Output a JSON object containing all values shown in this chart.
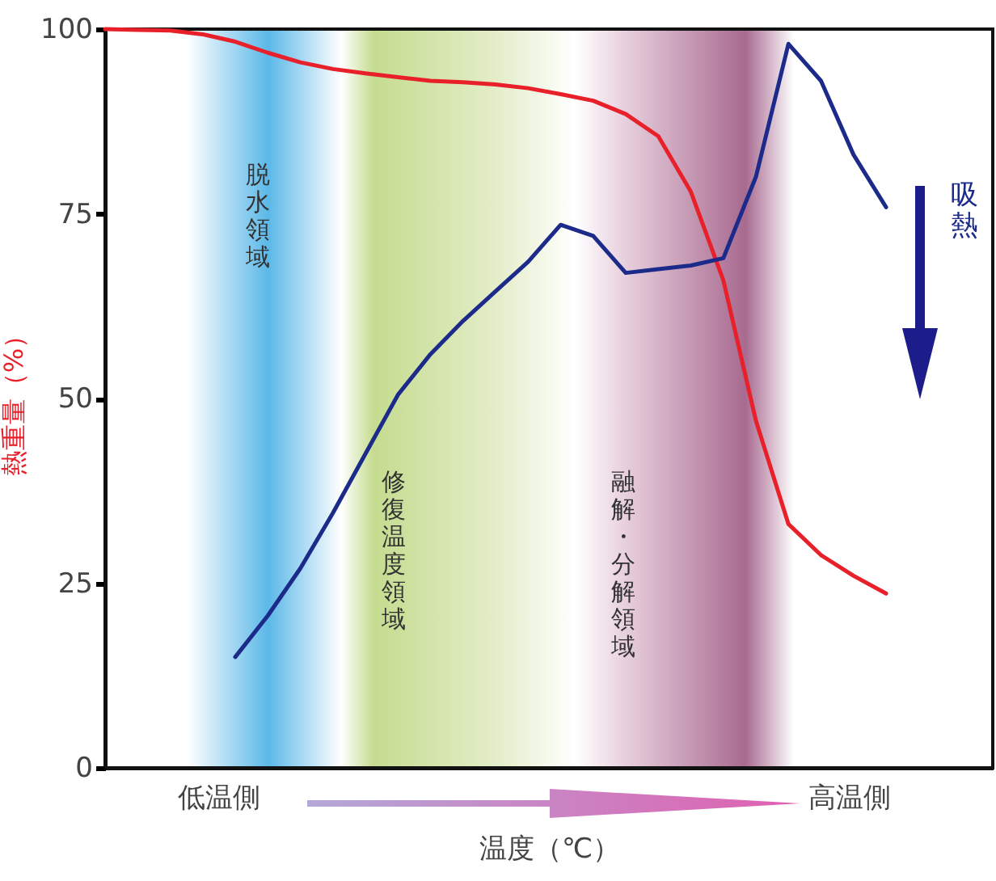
{
  "chart_data": {
    "type": "line",
    "xlabel": "温度（℃）",
    "ylabel": "熱重量（%）",
    "ylim": [
      0,
      100
    ],
    "yticks": [
      0,
      25,
      50,
      75,
      100
    ],
    "tick_labels": "y",
    "grid": false,
    "categories": [
      null,
      null,
      null,
      null,
      null,
      null,
      null,
      null,
      null,
      null,
      null,
      null,
      null,
      null,
      null,
      null,
      null,
      null,
      null,
      null,
      null,
      null,
      null,
      null,
      null
    ],
    "series": [
      {
        "color": "#e8202a",
        "values": [
          100,
          99.9,
          99.8,
          99.3,
          98.3,
          96.8,
          95.5,
          94.6,
          94,
          93.5,
          93,
          92.8,
          92.5,
          92,
          91.2,
          90.3,
          88.5,
          85.5,
          78,
          66,
          47,
          33,
          28.8,
          26,
          23.6
        ]
      },
      {
        "color": "#1c2a8a",
        "values": [
          null,
          null,
          null,
          null,
          15,
          20.6,
          27,
          34.5,
          42.5,
          50.5,
          56,
          60.5,
          64.5,
          68.5,
          73.5,
          72,
          67,
          67.5,
          68,
          69,
          80,
          98,
          93,
          83,
          75.9
        ]
      }
    ],
    "annotations": [
      "脱水領域",
      "修復温度領域",
      "融解・分解領域",
      "低温側",
      "高温側",
      "吸熱"
    ]
  }
}
